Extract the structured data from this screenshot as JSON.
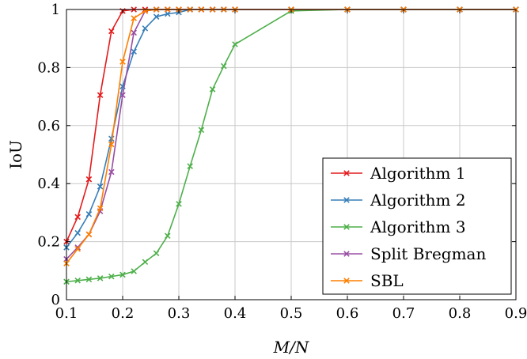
{
  "chart_data": {
    "type": "line",
    "xlabel": "M/N",
    "ylabel": "IoU",
    "xlim": [
      0.1,
      0.9
    ],
    "ylim": [
      0,
      1
    ],
    "xticks": [
      0.1,
      0.2,
      0.3,
      0.4,
      0.5,
      0.6,
      0.7,
      0.8,
      0.9
    ],
    "yticks": [
      0,
      0.2,
      0.4,
      0.6,
      0.8,
      1
    ],
    "xtick_labels": [
      "0.1",
      "0.2",
      "0.3",
      "0.4",
      "0.5",
      "0.6",
      "0.7",
      "0.8",
      "0.9"
    ],
    "ytick_labels": [
      "0",
      "0.2",
      "0.4",
      "0.6",
      "0.8",
      "1"
    ],
    "grid": true,
    "legend_position": "bottom-right",
    "marker": "x",
    "series": [
      {
        "name": "Algorithm 1",
        "color": "#e41a1c",
        "x": [
          0.1,
          0.12,
          0.14,
          0.16,
          0.18,
          0.2,
          0.22,
          0.24,
          0.26,
          0.28,
          0.3,
          0.32,
          0.34,
          0.36,
          0.38,
          0.4,
          0.5,
          0.6,
          0.7,
          0.8,
          0.9
        ],
        "y": [
          0.2,
          0.285,
          0.415,
          0.705,
          0.925,
          0.995,
          1,
          1,
          1,
          1,
          1,
          1,
          1,
          1,
          1,
          1,
          1,
          1,
          1,
          1,
          1
        ]
      },
      {
        "name": "Algorithm 2",
        "color": "#377eb8",
        "x": [
          0.1,
          0.12,
          0.14,
          0.16,
          0.18,
          0.2,
          0.22,
          0.24,
          0.26,
          0.28,
          0.3,
          0.32,
          0.34,
          0.36,
          0.38,
          0.4,
          0.5,
          0.6,
          0.7,
          0.8,
          0.9
        ],
        "y": [
          0.18,
          0.23,
          0.295,
          0.39,
          0.555,
          0.735,
          0.855,
          0.935,
          0.975,
          0.985,
          0.99,
          1,
          1,
          1,
          1,
          1,
          1,
          1,
          1,
          1,
          1
        ]
      },
      {
        "name": "Algorithm 3",
        "color": "#4daf4a",
        "x": [
          0.1,
          0.12,
          0.14,
          0.16,
          0.18,
          0.2,
          0.22,
          0.24,
          0.26,
          0.28,
          0.3,
          0.32,
          0.34,
          0.36,
          0.38,
          0.4,
          0.5,
          0.6,
          0.7,
          0.8,
          0.9
        ],
        "y": [
          0.062,
          0.066,
          0.07,
          0.074,
          0.08,
          0.086,
          0.098,
          0.13,
          0.16,
          0.22,
          0.33,
          0.46,
          0.585,
          0.725,
          0.805,
          0.88,
          0.995,
          1,
          1,
          1,
          1
        ]
      },
      {
        "name": "Split Bregman",
        "color": "#984ea3",
        "x": [
          0.1,
          0.12,
          0.14,
          0.16,
          0.18,
          0.2,
          0.22,
          0.24,
          0.26,
          0.28,
          0.3,
          0.32,
          0.34,
          0.36,
          0.38,
          0.4,
          0.5,
          0.6,
          0.7,
          0.8,
          0.9
        ],
        "y": [
          0.14,
          0.18,
          0.225,
          0.305,
          0.44,
          0.705,
          0.92,
          0.995,
          1,
          1,
          1,
          1,
          1,
          1,
          1,
          1,
          1,
          1,
          1,
          1,
          1
        ]
      },
      {
        "name": "SBL",
        "color": "#ff7f00",
        "x": [
          0.1,
          0.12,
          0.14,
          0.16,
          0.18,
          0.2,
          0.22,
          0.24,
          0.26,
          0.28,
          0.3,
          0.32,
          0.34,
          0.36,
          0.38,
          0.4,
          0.5,
          0.6,
          0.7,
          0.8,
          0.9
        ],
        "y": [
          0.125,
          0.175,
          0.225,
          0.315,
          0.535,
          0.82,
          0.97,
          0.995,
          1,
          1,
          1,
          1,
          1,
          1,
          1,
          1,
          1,
          1,
          1,
          1,
          1
        ]
      }
    ]
  }
}
